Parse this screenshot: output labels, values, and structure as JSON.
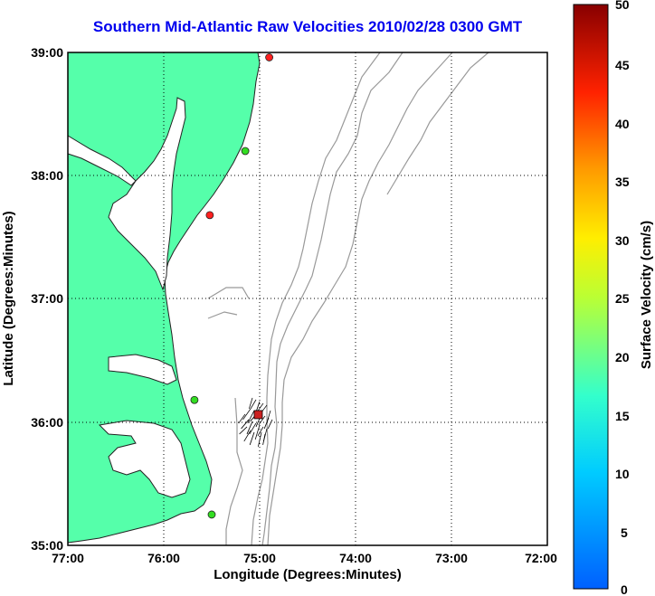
{
  "title": "Southern Mid-Atlantic Raw Velocities 2010/02/28 0300 GMT",
  "axes": {
    "xlabel": "Longitude (Degrees:Minutes)",
    "ylabel": "Latitude (Degrees:Minutes)",
    "x_ticks": [
      "77:00",
      "76:00",
      "75:00",
      "74:00",
      "73:00",
      "72:00"
    ],
    "y_ticks": [
      "39:00",
      "38:00",
      "37:00",
      "36:00",
      "35:00"
    ],
    "xlim": [
      -77,
      -72
    ],
    "ylim": [
      35,
      39
    ],
    "grid": "dotted"
  },
  "colorbar": {
    "label": "Surface Velocity (cm/s)",
    "ticks": [
      "50",
      "45",
      "40",
      "35",
      "30",
      "25",
      "20",
      "15",
      "10",
      "5",
      "0"
    ],
    "range": [
      0,
      50
    ]
  },
  "colors": {
    "land": "#55ffaa",
    "bathymetry": "#999999",
    "title": "#0000ee"
  },
  "stations": [
    {
      "color": "#ff2020",
      "lon": -74.9,
      "lat": 38.96
    },
    {
      "color": "#33dd22",
      "lon": -75.15,
      "lat": 38.2
    },
    {
      "color": "#ff2020",
      "lon": -75.52,
      "lat": 37.68
    },
    {
      "color": "#33dd22",
      "lon": -75.68,
      "lat": 36.18
    },
    {
      "color": "#33dd22",
      "lon": -75.5,
      "lat": 35.25
    }
  ],
  "vector_cluster": {
    "center_lon": -75.0,
    "center_lat": 36.05,
    "max_speed_color": "#cc2020"
  }
}
